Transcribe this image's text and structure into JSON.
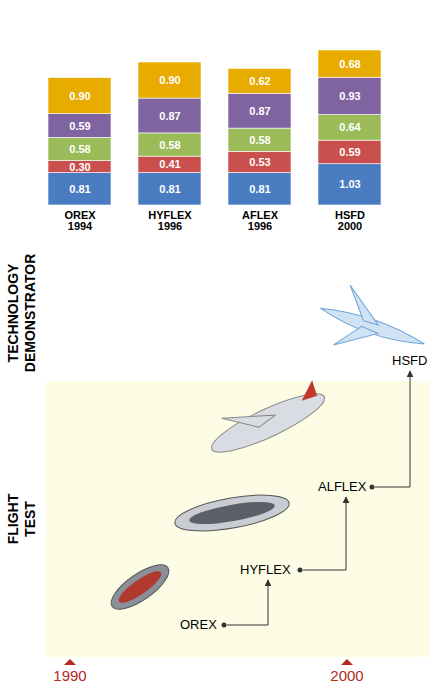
{
  "chart_data": {
    "type": "bar",
    "stacked": true,
    "data_labels": true,
    "tick_labels": "x",
    "categories": [
      "OREX 1994",
      "HYFLEX 1996",
      "AFLEX 1996",
      "HSFD 2000"
    ],
    "series": [
      {
        "color": "#4a7cc1",
        "values": [
          0.81,
          0.81,
          0.81,
          1.03
        ],
        "value_labels": [
          "0.81",
          "0.81",
          "0.81",
          "1.03"
        ]
      },
      {
        "color": "#c9504d",
        "values": [
          0.3,
          0.41,
          0.53,
          0.59
        ],
        "value_labels": [
          "0.30",
          "0.41",
          "0.53",
          "0.59"
        ]
      },
      {
        "color": "#9bbb59",
        "values": [
          0.58,
          0.58,
          0.58,
          0.64
        ],
        "value_labels": [
          "0.58",
          "0.58",
          "0.58",
          "0.64"
        ]
      },
      {
        "color": "#8064a2",
        "values": [
          0.59,
          0.87,
          0.87,
          0.93
        ],
        "value_labels": [
          "0.59",
          "0.87",
          "0.87",
          "0.93"
        ]
      },
      {
        "color": "#e8ab00",
        "values": [
          0.9,
          0.9,
          0.62,
          0.68
        ],
        "value_labels": [
          "0.90",
          "0.90",
          "0.62",
          "0.68"
        ]
      }
    ]
  },
  "diagram": {
    "bands": [
      {
        "label": "TECHNOLOGY DEMONSTRATOR"
      },
      {
        "label": "FLIGHT TEST"
      }
    ],
    "nodes": [
      {
        "label": "OREX"
      },
      {
        "label": "HYFLEX"
      },
      {
        "label": "ALFLEX"
      },
      {
        "label": "HSFD"
      }
    ],
    "edges": [
      [
        0,
        1
      ],
      [
        1,
        2
      ],
      [
        2,
        3
      ]
    ],
    "timeline": [
      1990,
      2000
    ]
  }
}
